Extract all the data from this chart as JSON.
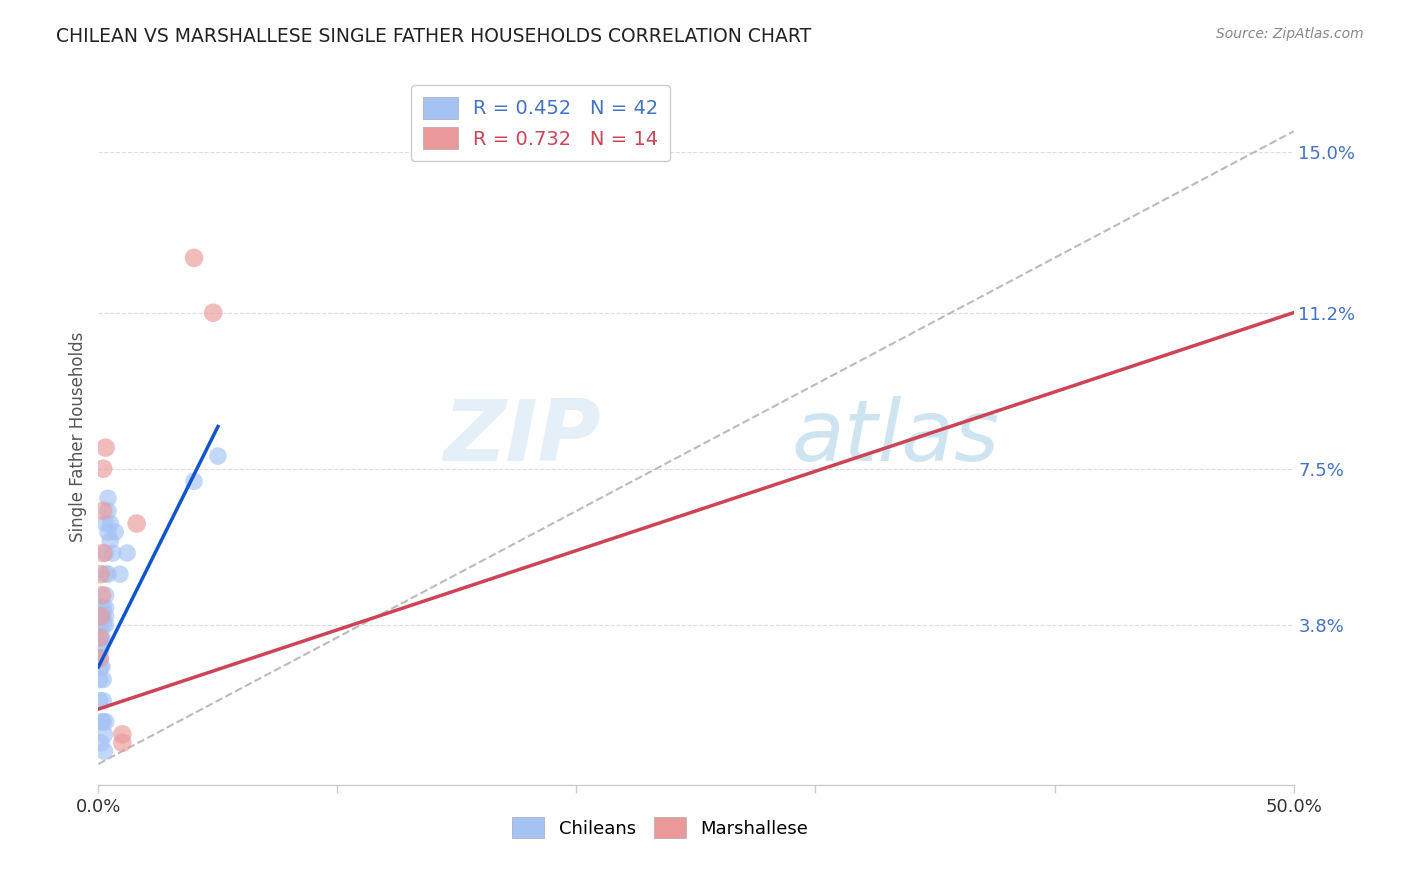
{
  "title": "CHILEAN VS MARSHALLESE SINGLE FATHER HOUSEHOLDS CORRELATION CHART",
  "source": "Source: ZipAtlas.com",
  "ylabel": "Single Father Households",
  "ytick_labels": [
    "3.8%",
    "7.5%",
    "11.2%",
    "15.0%"
  ],
  "ytick_values": [
    0.038,
    0.075,
    0.112,
    0.15
  ],
  "xlim": [
    0.0,
    0.5
  ],
  "ylim": [
    0.0,
    0.165
  ],
  "legend_chilean_r": "R = 0.452",
  "legend_chilean_n": "N = 42",
  "legend_marshallese_r": "R = 0.732",
  "legend_marshallese_n": "N = 14",
  "chilean_color": "#a4c2f4",
  "marshallese_color": "#ea9999",
  "trendline_chilean_color": "#1155cc",
  "trendline_marshallese_color": "#cc4455",
  "dashed_color": "#aaaaaa",
  "watermark_zip": "ZIP",
  "watermark_atlas": "atlas",
  "chilean_points": [
    [
      0.0005,
      0.025
    ],
    [
      0.0005,
      0.02
    ],
    [
      0.0008,
      0.03
    ],
    [
      0.0008,
      0.028
    ],
    [
      0.001,
      0.035
    ],
    [
      0.001,
      0.032
    ],
    [
      0.001,
      0.033
    ],
    [
      0.001,
      0.038
    ],
    [
      0.001,
      0.04
    ],
    [
      0.001,
      0.042
    ],
    [
      0.0012,
      0.015
    ],
    [
      0.0012,
      0.01
    ],
    [
      0.0015,
      0.028
    ],
    [
      0.0015,
      0.035
    ],
    [
      0.002,
      0.038
    ],
    [
      0.002,
      0.04
    ],
    [
      0.002,
      0.042
    ],
    [
      0.002,
      0.025
    ],
    [
      0.002,
      0.02
    ],
    [
      0.002,
      0.015
    ],
    [
      0.0025,
      0.012
    ],
    [
      0.0025,
      0.008
    ],
    [
      0.003,
      0.038
    ],
    [
      0.003,
      0.04
    ],
    [
      0.003,
      0.042
    ],
    [
      0.003,
      0.045
    ],
    [
      0.003,
      0.05
    ],
    [
      0.003,
      0.055
    ],
    [
      0.003,
      0.062
    ],
    [
      0.003,
      0.015
    ],
    [
      0.004,
      0.05
    ],
    [
      0.004,
      0.06
    ],
    [
      0.004,
      0.065
    ],
    [
      0.004,
      0.068
    ],
    [
      0.005,
      0.058
    ],
    [
      0.005,
      0.062
    ],
    [
      0.006,
      0.055
    ],
    [
      0.007,
      0.06
    ],
    [
      0.009,
      0.05
    ],
    [
      0.012,
      0.055
    ],
    [
      0.04,
      0.072
    ],
    [
      0.05,
      0.078
    ]
  ],
  "marshallese_points": [
    [
      0.0005,
      0.03
    ],
    [
      0.0005,
      0.035
    ],
    [
      0.001,
      0.04
    ],
    [
      0.001,
      0.05
    ],
    [
      0.0015,
      0.045
    ],
    [
      0.002,
      0.055
    ],
    [
      0.002,
      0.065
    ],
    [
      0.002,
      0.075
    ],
    [
      0.003,
      0.08
    ],
    [
      0.01,
      0.01
    ],
    [
      0.01,
      0.012
    ],
    [
      0.016,
      0.062
    ],
    [
      0.04,
      0.125
    ],
    [
      0.048,
      0.112
    ]
  ],
  "chilean_trend_x": [
    0.0,
    0.05
  ],
  "chilean_trend_y": [
    0.028,
    0.085
  ],
  "marshallese_trend_x": [
    0.0,
    0.5
  ],
  "marshallese_trend_y": [
    0.018,
    0.112
  ],
  "dashed_trend_x": [
    0.0,
    0.5
  ],
  "dashed_trend_y": [
    0.005,
    0.155
  ],
  "background_color": "#ffffff",
  "grid_color": "#dddddd",
  "spine_color": "#cccccc"
}
